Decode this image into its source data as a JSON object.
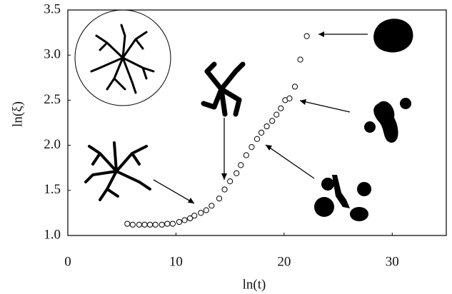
{
  "chart_data": {
    "type": "scatter",
    "xlabel": "ln(t)",
    "ylabel": "ln(ξ)",
    "xlim": [
      0,
      35
    ],
    "ylim": [
      1.0,
      3.5
    ],
    "xticks": [
      0,
      10,
      20,
      30
    ],
    "yticks": [
      {
        "value": 1,
        "label": "1.0"
      },
      1.5,
      {
        "value": 2,
        "label": "2.0"
      },
      2.5,
      {
        "value": 3,
        "label": "3.0"
      },
      3.5
    ],
    "series": [
      {
        "color": "#000000",
        "x": [
          5.5,
          6.0,
          6.6,
          7.1,
          7.6,
          8.1,
          8.7,
          9.2,
          9.7,
          10.3,
          10.8,
          11.3,
          11.7,
          12.3,
          12.8,
          13.3,
          14.0,
          14.5,
          15.0,
          15.6,
          16.0,
          16.5,
          17.0,
          17.5,
          17.9,
          18.4,
          18.9,
          19.3,
          19.7,
          20.1,
          20.5,
          21.0,
          21.5,
          22.1
        ],
        "values": [
          1.13,
          1.12,
          1.12,
          1.12,
          1.12,
          1.12,
          1.12,
          1.13,
          1.13,
          1.15,
          1.17,
          1.19,
          1.22,
          1.25,
          1.28,
          1.33,
          1.41,
          1.51,
          1.6,
          1.69,
          1.78,
          1.89,
          1.98,
          2.07,
          2.14,
          2.21,
          2.27,
          2.34,
          2.41,
          2.5,
          2.52,
          2.65,
          2.95,
          3.21
        ]
      }
    ]
  }
}
